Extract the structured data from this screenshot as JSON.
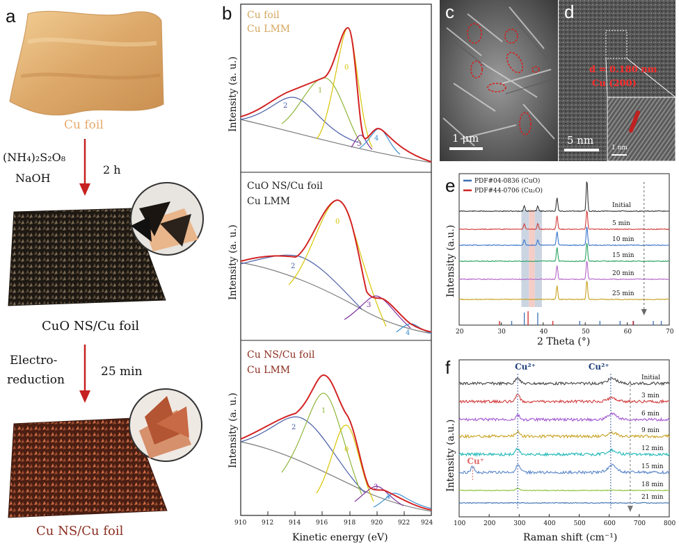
{
  "panel_labels": {
    "a": "a",
    "b": "b",
    "c": "c",
    "d": "d",
    "e": "e",
    "f": "f"
  },
  "panel_a": {
    "cu_foil": "Cu foil",
    "reagent1": "(NH₄)₂S₂O₈",
    "reagent2": "NaOH",
    "time1": "2 h",
    "cuo_label": "CuO NS/Cu foil",
    "electro1": "Electro-",
    "electro2": "reduction",
    "time2": "25 min",
    "cu_ns_label": "Cu NS/Cu foil"
  },
  "panel_b": {
    "y_label": "Intensity (a. u.)",
    "x_label": "Kinetic energy (eV)",
    "x_ticks": [
      "910",
      "912",
      "914",
      "916",
      "918",
      "920",
      "922",
      "924"
    ],
    "top": {
      "name1": "Cu foil",
      "name2": "Cu LMM",
      "name_color": "#d4a65c",
      "peaks": [
        "0",
        "1",
        "2",
        "3",
        "4"
      ]
    },
    "mid": {
      "name1": "CuO NS/Cu foil",
      "name2": "Cu LMM",
      "name_color": "#222222",
      "peaks": [
        "0",
        "2",
        "3",
        "4"
      ]
    },
    "bot": {
      "name1": "Cu NS/Cu foil",
      "name2": "Cu LMM",
      "name_color": "#8b2d1f",
      "peaks": [
        "0",
        "1",
        "2",
        "3",
        "4"
      ]
    }
  },
  "panel_c": {
    "scale": "1 μm"
  },
  "panel_d": {
    "annotation1": "d = 0.180 nm",
    "annotation2": "Cu (200)",
    "scale_main": "5 nm",
    "scale_inset": "1 nm"
  },
  "colors": {
    "fit_red": "#d22222",
    "bg_gray": "#7a7a7a",
    "peak0": "#d8c400",
    "peak1": "#8fb53a",
    "peak2": "#4a5fa8",
    "peak3": "#7b2d9a",
    "peak4": "#3a8fd0"
  },
  "chart_data": [
    {
      "panel": "e",
      "type": "line",
      "title": "",
      "xlabel": "2 Theta (°)",
      "ylabel": "Intensity (a.u.)",
      "xlim": [
        20,
        70
      ],
      "x_ticks": [
        "20",
        "30",
        "40",
        "50",
        "60",
        "70"
      ],
      "legend": [
        {
          "name": "PDF#04-0836 (CuO)",
          "color": "#3b6fb5"
        },
        {
          "name": "PDF#44-0706 (Cu₂O)",
          "color": "#d22222"
        }
      ],
      "series": [
        {
          "name": "Initial",
          "color": "#333333",
          "peaks": [
            35.5,
            38.7,
            43.3,
            50.4
          ]
        },
        {
          "name": "5 min",
          "color": "#d23a3a",
          "peaks": [
            35.5,
            38.7,
            43.3,
            50.4
          ]
        },
        {
          "name": "10 min",
          "color": "#3a74c8",
          "peaks": [
            35.5,
            38.7,
            43.3,
            50.4
          ]
        },
        {
          "name": "15 min",
          "color": "#2aa160",
          "peaks": [
            43.3,
            50.4
          ]
        },
        {
          "name": "20 min",
          "color": "#b565c8",
          "peaks": [
            43.3,
            50.4
          ]
        },
        {
          "name": "25 min",
          "color": "#c8a222",
          "peaks": [
            43.3,
            50.4
          ]
        }
      ]
    },
    {
      "panel": "f",
      "type": "line",
      "title": "",
      "xlabel": "Raman shift (cm⁻¹)",
      "ylabel": "Intensity (a.u.)",
      "xlim": [
        100,
        800
      ],
      "x_ticks": [
        "100",
        "200",
        "300",
        "400",
        "500",
        "600",
        "700",
        "800"
      ],
      "annotations": [
        {
          "text": "Cu²⁺",
          "x": 295
        },
        {
          "text": "Cu²⁺",
          "x": 605
        },
        {
          "text": "Cu⁺",
          "x": 145
        }
      ],
      "series": [
        {
          "name": "Initial",
          "color": "#444444"
        },
        {
          "name": "3 min",
          "color": "#d23a3a"
        },
        {
          "name": "6 min",
          "color": "#a055d0"
        },
        {
          "name": "9 min",
          "color": "#c8a222"
        },
        {
          "name": "12 min",
          "color": "#22b8b8"
        },
        {
          "name": "15 min",
          "color": "#5a86c8"
        },
        {
          "name": "18 min",
          "color": "#88c030"
        },
        {
          "name": "21 min",
          "color": "#3a6fb0"
        }
      ]
    }
  ]
}
